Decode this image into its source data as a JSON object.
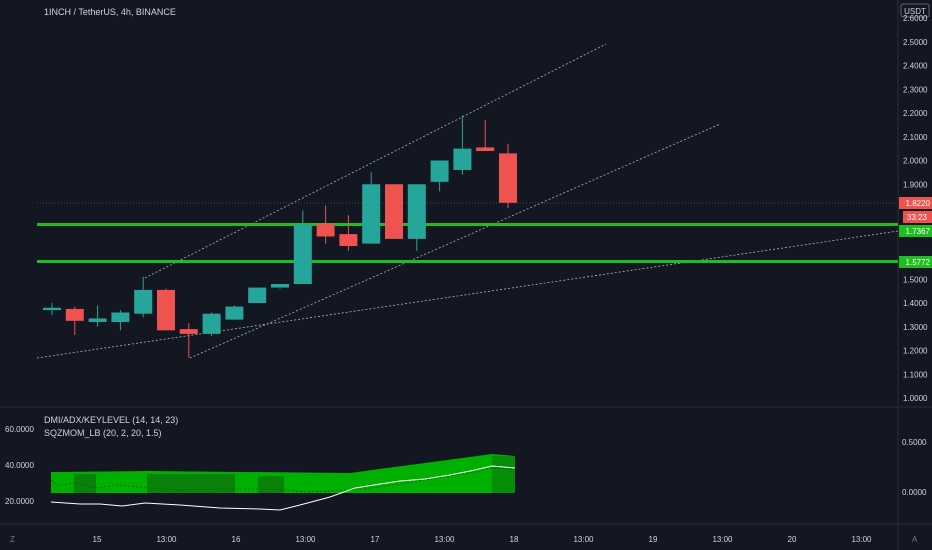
{
  "chart_header": {
    "title": "1INCH / TetherUS, 4h, BINANCE",
    "currency": "USDT"
  },
  "main_axis": {
    "ticks": [
      "2.6000",
      "2.5000",
      "2.4000",
      "2.3000",
      "2.2000",
      "2.1000",
      "2.0000",
      "1.9000",
      "1.5000",
      "1.4000",
      "1.3000",
      "1.2000",
      "1.1000",
      "1.0000"
    ],
    "tick_values": [
      2.6,
      2.5,
      2.4,
      2.3,
      2.2,
      2.1,
      2.0,
      1.9,
      1.5,
      1.4,
      1.3,
      1.2,
      1.1,
      1.0
    ]
  },
  "price_labels": {
    "last_price": "1.8220",
    "countdown": "33:23",
    "level_1": "1.7367",
    "level_2": "1.5772"
  },
  "indicators": {
    "line1": "DMI/ADX/KEYLEVEL (14, 14, 23)",
    "line2": "SQZMOM_LB (20, 2, 20, 1.5)"
  },
  "lower_axis": {
    "left_ticks": [
      "60.0000",
      "40.0000",
      "20.0000"
    ],
    "right_ticks": [
      "0.5000",
      "0.0000"
    ]
  },
  "time_axis": {
    "labels": [
      "15",
      "13:00",
      "16",
      "13:00",
      "17",
      "13:00",
      "18",
      "13:00",
      "19",
      "13:00",
      "20",
      "13:00"
    ],
    "left_button": "Z",
    "right_button": "A"
  },
  "colors": {
    "background": "#131722",
    "bull": "#26a69a",
    "bear": "#ef5350",
    "level": "#1fbd1f",
    "histogram": "#00b000"
  },
  "chart_data": {
    "type": "candlestick",
    "timeframe": "4h",
    "symbol": "1INCH / TetherUS",
    "exchange": "BINANCE",
    "ylim": [
      1.0,
      2.6
    ],
    "key_levels": [
      1.7367,
      1.5772
    ],
    "last_price": 1.822,
    "candles": [
      {
        "o": 1.37,
        "h": 1.4,
        "l": 1.35,
        "c": 1.38
      },
      {
        "o": 1.375,
        "h": 1.385,
        "l": 1.265,
        "c": 1.325
      },
      {
        "o": 1.32,
        "h": 1.39,
        "l": 1.3,
        "c": 1.335
      },
      {
        "o": 1.32,
        "h": 1.37,
        "l": 1.285,
        "c": 1.36
      },
      {
        "o": 1.355,
        "h": 1.51,
        "l": 1.34,
        "c": 1.455
      },
      {
        "o": 1.455,
        "h": 1.46,
        "l": 1.285,
        "c": 1.285
      },
      {
        "o": 1.29,
        "h": 1.315,
        "l": 1.17,
        "c": 1.27
      },
      {
        "o": 1.27,
        "h": 1.36,
        "l": 1.26,
        "c": 1.355
      },
      {
        "o": 1.33,
        "h": 1.39,
        "l": 1.33,
        "c": 1.385
      },
      {
        "o": 1.4,
        "h": 1.46,
        "l": 1.4,
        "c": 1.465
      },
      {
        "o": 1.465,
        "h": 1.48,
        "l": 1.46,
        "c": 1.48
      },
      {
        "o": 1.48,
        "h": 1.79,
        "l": 1.48,
        "c": 1.73
      },
      {
        "o": 1.735,
        "h": 1.81,
        "l": 1.65,
        "c": 1.68
      },
      {
        "o": 1.69,
        "h": 1.77,
        "l": 1.62,
        "c": 1.64
      },
      {
        "o": 1.65,
        "h": 1.95,
        "l": 1.65,
        "c": 1.9
      },
      {
        "o": 1.9,
        "h": 1.9,
        "l": 1.67,
        "c": 1.67
      },
      {
        "o": 1.67,
        "h": 1.9,
        "l": 1.62,
        "c": 1.9
      },
      {
        "o": 1.91,
        "h": 2.0,
        "l": 1.87,
        "c": 2.0
      },
      {
        "o": 1.96,
        "h": 2.19,
        "l": 1.94,
        "c": 2.05
      },
      {
        "o": 2.055,
        "h": 2.17,
        "l": 2.04,
        "c": 2.04
      },
      {
        "o": 2.03,
        "h": 2.07,
        "l": 1.8,
        "c": 1.822
      }
    ]
  }
}
